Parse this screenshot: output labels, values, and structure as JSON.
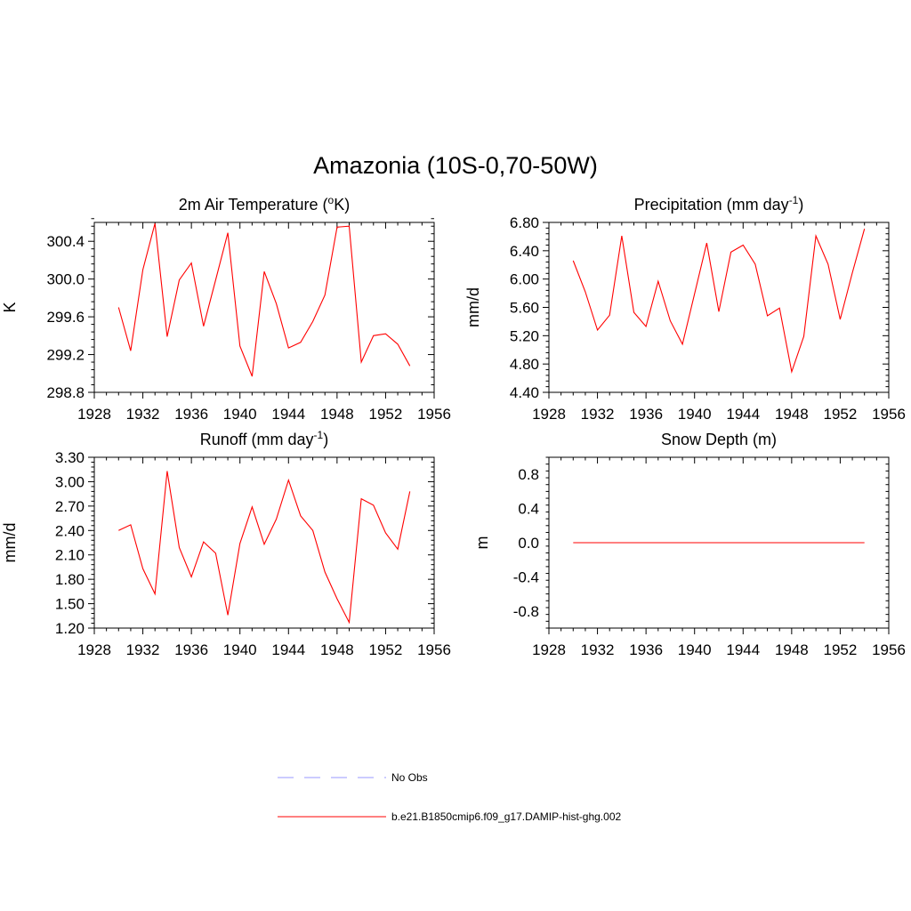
{
  "figure": {
    "title": "Amazonia (10S-0,70-50W)",
    "colors": {
      "series": "#ff0000",
      "obs": "#9999ff",
      "axis": "#000000"
    }
  },
  "chart_data": [
    {
      "type": "line",
      "title": {
        "main": "2m Air Temperature (",
        "sup": "o",
        "rest": "K)"
      },
      "ylabel": "K",
      "xlim": [
        1928,
        1956
      ],
      "ylim": [
        298.8,
        300.6
      ],
      "xticks": [
        1928,
        1932,
        1936,
        1940,
        1944,
        1948,
        1952,
        1956
      ],
      "yticks": [
        298.8,
        299.2,
        299.6,
        300.0,
        300.4
      ],
      "ytick_labels": [
        "298.8",
        "299.2",
        "299.6",
        "300.0",
        "300.4"
      ],
      "series": [
        {
          "name": "b.e21.B1850cmip6.f09_g17.DAMIP-hist-ghg.002",
          "x": [
            1930,
            1931,
            1932,
            1933,
            1934,
            1935,
            1936,
            1937,
            1938,
            1939,
            1940,
            1941,
            1942,
            1943,
            1944,
            1945,
            1946,
            1947,
            1948,
            1949,
            1950,
            1951,
            1952,
            1953,
            1954
          ],
          "values": [
            299.7,
            299.24,
            300.1,
            300.59,
            299.39,
            299.99,
            300.17,
            299.5,
            299.99,
            300.49,
            299.29,
            298.97,
            300.08,
            299.74,
            299.27,
            299.33,
            299.55,
            299.83,
            300.55,
            300.56,
            299.12,
            299.4,
            299.42,
            299.31,
            299.08
          ]
        }
      ]
    },
    {
      "type": "line",
      "title": {
        "main": "Precipitation (mm day",
        "sup": "-1",
        "rest": ")"
      },
      "ylabel": "mm/d",
      "xlim": [
        1928,
        1956
      ],
      "ylim": [
        4.4,
        6.8
      ],
      "xticks": [
        1928,
        1932,
        1936,
        1940,
        1944,
        1948,
        1952,
        1956
      ],
      "yticks": [
        4.4,
        4.8,
        5.2,
        5.6,
        6.0,
        6.4,
        6.8
      ],
      "ytick_labels": [
        "4.40",
        "4.80",
        "5.20",
        "5.60",
        "6.00",
        "6.40",
        "6.80"
      ],
      "series": [
        {
          "name": "b.e21.B1850cmip6.f09_g17.DAMIP-hist-ghg.002",
          "x": [
            1930,
            1931,
            1932,
            1933,
            1934,
            1935,
            1936,
            1937,
            1938,
            1939,
            1940,
            1941,
            1942,
            1943,
            1944,
            1945,
            1946,
            1947,
            1948,
            1949,
            1950,
            1951,
            1952,
            1953,
            1954
          ],
          "values": [
            6.26,
            5.82,
            5.28,
            5.49,
            6.61,
            5.53,
            5.33,
            5.97,
            5.41,
            5.08,
            5.79,
            6.51,
            5.54,
            6.38,
            6.48,
            6.21,
            5.48,
            5.59,
            4.69,
            5.19,
            6.61,
            6.21,
            5.43,
            6.09,
            6.71
          ]
        }
      ]
    },
    {
      "type": "line",
      "title": {
        "main": "Runoff (mm day",
        "sup": "-1",
        "rest": ")"
      },
      "ylabel": "mm/d",
      "xlim": [
        1928,
        1956
      ],
      "ylim": [
        1.2,
        3.3
      ],
      "xticks": [
        1928,
        1932,
        1936,
        1940,
        1944,
        1948,
        1952,
        1956
      ],
      "yticks": [
        1.2,
        1.5,
        1.8,
        2.1,
        2.4,
        2.7,
        3.0,
        3.3
      ],
      "ytick_labels": [
        "1.20",
        "1.50",
        "1.80",
        "2.10",
        "2.40",
        "2.70",
        "3.00",
        "3.30"
      ],
      "series": [
        {
          "name": "b.e21.B1850cmip6.f09_g17.DAMIP-hist-ghg.002",
          "x": [
            1930,
            1931,
            1932,
            1933,
            1934,
            1935,
            1936,
            1937,
            1938,
            1939,
            1940,
            1941,
            1942,
            1943,
            1944,
            1945,
            1946,
            1947,
            1948,
            1949,
            1950,
            1951,
            1952,
            1953,
            1954
          ],
          "values": [
            2.4,
            2.47,
            1.93,
            1.62,
            3.13,
            2.19,
            1.83,
            2.26,
            2.12,
            1.36,
            2.24,
            2.69,
            2.23,
            2.54,
            3.02,
            2.58,
            2.4,
            1.89,
            1.56,
            1.27,
            2.79,
            2.71,
            2.37,
            2.17,
            2.88
          ]
        }
      ]
    },
    {
      "type": "line",
      "title": {
        "main": "Snow Depth (m)",
        "sup": "",
        "rest": ""
      },
      "ylabel": "m",
      "xlim": [
        1928,
        1956
      ],
      "ylim": [
        -1.0,
        1.0
      ],
      "xticks": [
        1928,
        1932,
        1936,
        1940,
        1944,
        1948,
        1952,
        1956
      ],
      "yticks": [
        -0.8,
        -0.4,
        0.0,
        0.4,
        0.8
      ],
      "ytick_labels": [
        "-0.8",
        "-0.4",
        "0.0",
        "0.4",
        "0.8"
      ],
      "series": [
        {
          "name": "b.e21.B1850cmip6.f09_g17.DAMIP-hist-ghg.002",
          "x": [
            1930,
            1931,
            1932,
            1933,
            1934,
            1935,
            1936,
            1937,
            1938,
            1939,
            1940,
            1941,
            1942,
            1943,
            1944,
            1945,
            1946,
            1947,
            1948,
            1949,
            1950,
            1951,
            1952,
            1953,
            1954
          ],
          "values": [
            0,
            0,
            0,
            0,
            0,
            0,
            0,
            0,
            0,
            0,
            0,
            0,
            0,
            0,
            0,
            0,
            0,
            0,
            0,
            0,
            0,
            0,
            0,
            0,
            0
          ]
        }
      ]
    }
  ],
  "legend": {
    "items": [
      {
        "label": "No Obs",
        "style": "dashed",
        "color": "#9999ff"
      },
      {
        "label": "b.e21.B1850cmip6.f09_g17.DAMIP-hist-ghg.002",
        "style": "solid",
        "color": "#ff0000"
      }
    ]
  }
}
